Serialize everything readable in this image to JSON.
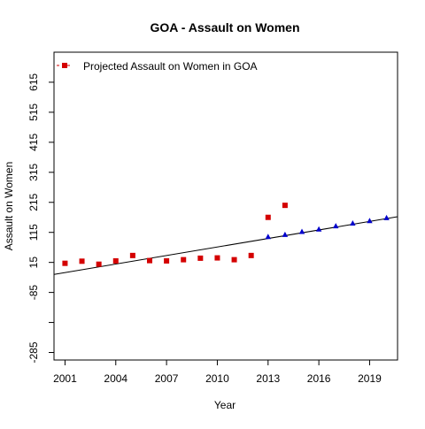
{
  "chart_data": {
    "type": "scatter",
    "title": "GOA  -  Assault on Women",
    "xlabel": "Year",
    "ylabel": "Assault on Women",
    "xlim": [
      2000.35,
      2020.65
    ],
    "ylim": [
      -310,
      715
    ],
    "x_ticks": [
      2001,
      2004,
      2007,
      2010,
      2013,
      2016,
      2019
    ],
    "y_ticks": [
      -285,
      -85,
      15,
      115,
      215,
      315,
      415,
      515,
      615
    ],
    "y_extra_ticks": [
      -185
    ],
    "grid": false,
    "legend": {
      "position": "top-left",
      "entries": [
        {
          "label": "Projected  Assault on Women  in  GOA",
          "marker": "square",
          "color": "#d40000"
        }
      ]
    },
    "series": [
      {
        "name": "Projected  Assault on Women  in  GOA",
        "marker": "square",
        "color": "#d40000",
        "points": [
          [
            2001,
            12
          ],
          [
            2002,
            19
          ],
          [
            2003,
            9
          ],
          [
            2004,
            20
          ],
          [
            2005,
            38
          ],
          [
            2006,
            21
          ],
          [
            2007,
            20
          ],
          [
            2008,
            24
          ],
          [
            2009,
            29
          ],
          [
            2010,
            30
          ],
          [
            2011,
            24
          ],
          [
            2012,
            38
          ],
          [
            2013,
            165
          ],
          [
            2014,
            205
          ]
        ]
      },
      {
        "marker": "triangle",
        "color": "#0000cc",
        "points": [
          [
            2013,
            100
          ],
          [
            2014,
            107
          ],
          [
            2015,
            117
          ],
          [
            2016,
            125
          ],
          [
            2017,
            136
          ],
          [
            2018,
            145
          ],
          [
            2019,
            153
          ],
          [
            2020,
            163
          ]
        ]
      }
    ],
    "trend_line": {
      "color": "#000000",
      "x": [
        2000.35,
        2020.65
      ],
      "y": [
        -25,
        167
      ]
    }
  }
}
